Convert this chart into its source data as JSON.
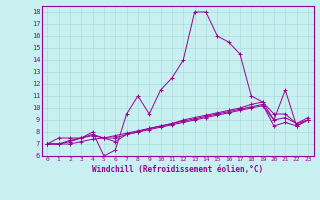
{
  "title": "",
  "xlabel": "Windchill (Refroidissement éolien,°C)",
  "bg_color": "#c8f0f0",
  "line_color": "#990099",
  "grid_color": "#aadddd",
  "xlim": [
    -0.5,
    23.5
  ],
  "ylim": [
    6,
    18.5
  ],
  "yticks": [
    6,
    7,
    8,
    9,
    10,
    11,
    12,
    13,
    14,
    15,
    16,
    17,
    18
  ],
  "xticks": [
    0,
    1,
    2,
    3,
    4,
    5,
    6,
    7,
    8,
    9,
    10,
    11,
    12,
    13,
    14,
    15,
    16,
    17,
    18,
    19,
    20,
    21,
    22,
    23
  ],
  "series": [
    [
      7.0,
      7.5,
      7.5,
      7.5,
      8.0,
      6.0,
      6.5,
      9.5,
      11.0,
      9.5,
      11.5,
      12.5,
      14.0,
      18.0,
      18.0,
      16.0,
      15.5,
      14.5,
      11.0,
      10.5,
      9.0,
      11.5,
      8.5,
      9.0
    ],
    [
      7.0,
      7.0,
      7.3,
      7.5,
      7.8,
      7.5,
      7.2,
      7.8,
      8.0,
      8.3,
      8.5,
      8.7,
      9.0,
      9.2,
      9.4,
      9.6,
      9.8,
      10.0,
      10.3,
      10.5,
      9.5,
      9.5,
      8.7,
      9.2
    ],
    [
      7.0,
      7.0,
      7.2,
      7.5,
      7.7,
      7.5,
      7.5,
      7.8,
      8.0,
      8.2,
      8.4,
      8.6,
      8.8,
      9.0,
      9.2,
      9.4,
      9.6,
      9.8,
      10.0,
      10.2,
      9.0,
      9.2,
      8.7,
      9.0
    ],
    [
      7.0,
      7.0,
      7.0,
      7.2,
      7.4,
      7.5,
      7.7,
      7.9,
      8.1,
      8.3,
      8.5,
      8.7,
      8.9,
      9.1,
      9.3,
      9.5,
      9.7,
      9.9,
      10.1,
      10.3,
      8.5,
      8.8,
      8.5,
      9.0
    ]
  ]
}
